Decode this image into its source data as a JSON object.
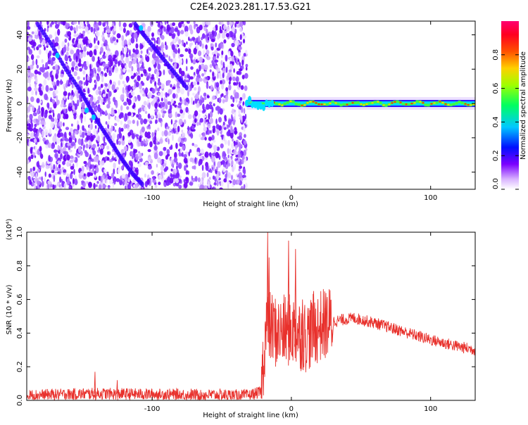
{
  "title": "C2E4.2023.281.17.53.G21",
  "colorbar": {
    "label": "Normalized spectral amplitude",
    "ticks": [
      0.0,
      0.2,
      0.4,
      0.6,
      0.8
    ],
    "tick_labels": [
      "0.0",
      "0.2",
      "0.4",
      "0.6",
      "0.8"
    ],
    "range": [
      0,
      1
    ]
  },
  "chart_data": [
    {
      "type": "heatmap",
      "xlabel": "Height of straight line (km)",
      "ylabel": "Frequency (Hz)",
      "xlim": [
        -190,
        132
      ],
      "ylim": [
        -50,
        48
      ],
      "xticks": [
        -100,
        0,
        100
      ],
      "xtick_labels": [
        "-100",
        "0",
        "100"
      ],
      "yticks": [
        -40,
        -20,
        0,
        20,
        40
      ],
      "ytick_labels": [
        "-40",
        "-20",
        "0",
        "20",
        "40"
      ],
      "noise_region_x": [
        -190,
        -32
      ],
      "signal_band": {
        "x_start": -32,
        "x_end": 132,
        "center_frequency_hz": 0,
        "peak_amplitude": 0.8
      },
      "chirp_trace": [
        [
          -182,
          46
        ],
        [
          -172,
          34
        ],
        [
          -162,
          20
        ],
        [
          -152,
          8
        ],
        [
          -145,
          -2
        ],
        [
          -138,
          -12
        ],
        [
          -130,
          -22
        ],
        [
          -122,
          -32
        ],
        [
          -114,
          -41
        ],
        [
          -106,
          -48
        ]
      ],
      "chirp_trace_upper": [
        [
          -112,
          46
        ],
        [
          -104,
          38
        ],
        [
          -94,
          28
        ],
        [
          -84,
          18
        ],
        [
          -74,
          8
        ]
      ]
    },
    {
      "type": "line",
      "xlabel": "Height of straight line (km)",
      "ylabel": "SNR (10 * v/v)",
      "yscale_label": "(x10⁴)",
      "xlim": [
        -190,
        132
      ],
      "ylim": [
        0,
        1.0
      ],
      "xticks": [
        -100,
        0,
        100
      ],
      "xtick_labels": [
        "-100",
        "0",
        "100"
      ],
      "yticks": [
        0.0,
        0.2,
        0.4,
        0.6,
        0.8,
        1.0
      ],
      "ytick_labels": [
        "0.0",
        "0.2",
        "0.4",
        "0.6",
        "0.8",
        "1.0"
      ],
      "color": "#e8312c",
      "envelope": {
        "x": [
          -190,
          -140,
          -30,
          -22,
          -18,
          -10,
          0,
          10,
          20,
          30,
          45,
          60,
          80,
          100,
          120,
          132
        ],
        "y": [
          0.03,
          0.04,
          0.03,
          0.05,
          0.45,
          0.4,
          0.42,
          0.38,
          0.44,
          0.47,
          0.49,
          0.46,
          0.41,
          0.36,
          0.32,
          0.3
        ]
      },
      "spikes": [
        {
          "x": -17,
          "y": 1.0
        },
        {
          "x": -16,
          "y": 0.85
        },
        {
          "x": -2,
          "y": 0.95
        },
        {
          "x": 3,
          "y": 0.9
        },
        {
          "x": 8,
          "y": 0.6
        },
        {
          "x": 16,
          "y": 0.65
        },
        {
          "x": 24,
          "y": 0.55
        },
        {
          "x": -141,
          "y": 0.17
        },
        {
          "x": -125,
          "y": 0.12
        }
      ]
    }
  ]
}
